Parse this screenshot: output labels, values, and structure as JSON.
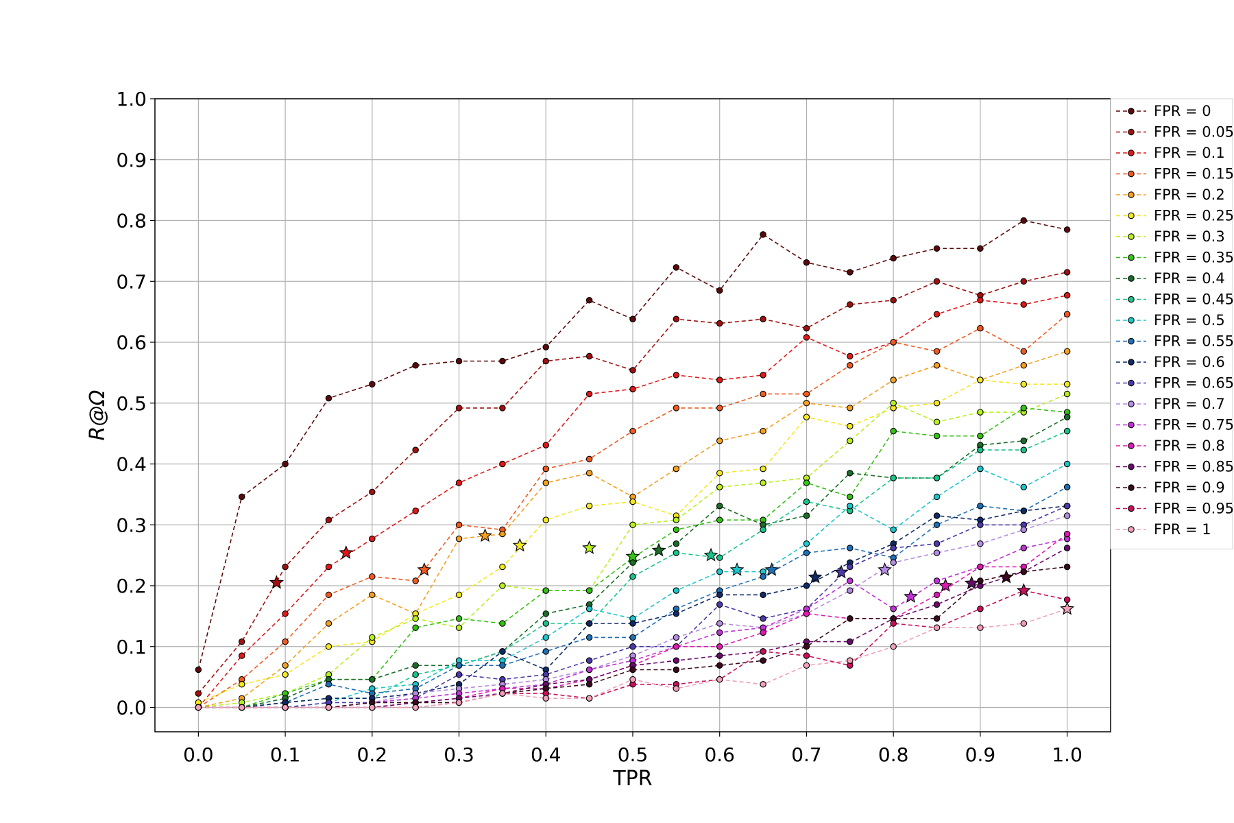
{
  "chart_data": {
    "type": "line",
    "xlabel": "TPR",
    "ylabel": "R@Ω",
    "xlim": [
      -0.05,
      1.05
    ],
    "ylim": [
      -0.04,
      1.0
    ],
    "grid": true,
    "legend_position": "right",
    "x": [
      0,
      0.05,
      0.1,
      0.15,
      0.2,
      0.25,
      0.3,
      0.35,
      0.4,
      0.45,
      0.5,
      0.55,
      0.6,
      0.65,
      0.7,
      0.75,
      0.8,
      0.85,
      0.9,
      0.95,
      1.0
    ],
    "x_ticks": [
      "0.0",
      "0.1",
      "0.2",
      "0.3",
      "0.4",
      "0.5",
      "0.6",
      "0.7",
      "0.8",
      "0.9",
      "1.0"
    ],
    "y_ticks": [
      "0.0",
      "0.1",
      "0.2",
      "0.3",
      "0.4",
      "0.5",
      "0.6",
      "0.7",
      "0.8",
      "0.9",
      "1.0"
    ],
    "series": [
      {
        "name": "FPR = 0",
        "color": "#5a0a0a",
        "values": [
          0.062,
          0.346,
          0.4,
          0.508,
          0.531,
          0.562,
          0.569,
          0.569,
          0.592,
          0.669,
          0.638,
          0.723,
          0.685,
          0.777,
          0.731,
          0.715,
          0.738,
          0.754,
          0.754,
          0.8,
          0.785
        ],
        "star": [
          0.09,
          0.205
        ]
      },
      {
        "name": "FPR = 0.05",
        "color": "#a01010",
        "values": [
          0.023,
          0.108,
          0.231,
          0.308,
          0.354,
          0.423,
          0.492,
          0.492,
          0.569,
          0.577,
          0.554,
          0.638,
          0.631,
          0.638,
          0.623,
          0.662,
          0.669,
          0.7,
          0.677,
          0.7,
          0.715
        ],
        "star": [
          0.09,
          0.205
        ]
      },
      {
        "name": "FPR = 0.1",
        "color": "#e01818",
        "values": [
          0.0,
          0.085,
          0.154,
          0.231,
          0.277,
          0.323,
          0.369,
          0.4,
          0.431,
          0.515,
          0.523,
          0.546,
          0.538,
          0.546,
          0.608,
          0.577,
          0.6,
          0.646,
          0.669,
          0.662,
          0.677
        ],
        "star": [
          0.17,
          0.254
        ]
      },
      {
        "name": "FPR = 0.15",
        "color": "#f05a20",
        "values": [
          0.0,
          0.046,
          0.108,
          0.185,
          0.215,
          0.208,
          0.3,
          0.292,
          0.392,
          0.408,
          0.454,
          0.492,
          0.492,
          0.515,
          0.515,
          0.562,
          0.6,
          0.585,
          0.623,
          0.585,
          0.646
        ],
        "star": [
          0.26,
          0.226
        ]
      },
      {
        "name": "FPR = 0.2",
        "color": "#f5a020",
        "values": [
          0.0,
          0.015,
          0.069,
          0.138,
          0.185,
          0.154,
          0.277,
          0.285,
          0.369,
          0.385,
          0.346,
          0.392,
          0.438,
          0.454,
          0.5,
          0.492,
          0.538,
          0.562,
          0.538,
          0.562,
          0.585
        ],
        "star": [
          0.33,
          0.282
        ]
      },
      {
        "name": "FPR = 0.25",
        "color": "#f5e81e",
        "values": [
          0.008,
          0.038,
          0.054,
          0.1,
          0.108,
          0.154,
          0.185,
          0.231,
          0.308,
          0.331,
          0.338,
          0.315,
          0.385,
          0.392,
          0.477,
          0.462,
          0.492,
          0.5,
          0.538,
          0.531,
          0.531
        ],
        "star": [
          0.37,
          0.266
        ]
      },
      {
        "name": "FPR = 0.3",
        "color": "#b8f020",
        "values": [
          0.0,
          0.008,
          0.023,
          0.054,
          0.115,
          0.146,
          0.131,
          0.2,
          0.192,
          0.192,
          0.3,
          0.308,
          0.362,
          0.369,
          0.377,
          0.438,
          0.5,
          0.469,
          0.485,
          0.485,
          0.515
        ],
        "star": [
          0.45,
          0.262
        ]
      },
      {
        "name": "FPR = 0.35",
        "color": "#34c214",
        "values": [
          0.0,
          0.0,
          0.023,
          0.046,
          0.046,
          0.131,
          0.146,
          0.138,
          0.192,
          0.192,
          0.246,
          0.292,
          0.308,
          0.308,
          0.369,
          0.346,
          0.454,
          0.446,
          0.446,
          0.492,
          0.485
        ],
        "star": [
          0.5,
          0.248
        ]
      },
      {
        "name": "FPR = 0.4",
        "color": "#1a6e28",
        "values": [
          0.0,
          0.0,
          0.015,
          0.046,
          0.046,
          0.069,
          0.069,
          0.092,
          0.154,
          0.169,
          0.238,
          0.269,
          0.331,
          0.3,
          0.315,
          0.385,
          0.377,
          0.377,
          0.431,
          0.438,
          0.477
        ],
        "star": [
          0.53,
          0.258
        ]
      },
      {
        "name": "FPR = 0.45",
        "color": "#19c48a",
        "values": [
          0.0,
          0.0,
          0.008,
          0.015,
          0.015,
          0.054,
          0.069,
          0.092,
          0.138,
          0.138,
          0.215,
          0.254,
          0.246,
          0.292,
          0.338,
          0.323,
          0.377,
          0.377,
          0.423,
          0.423,
          0.454
        ],
        "star": [
          0.59,
          0.25
        ]
      },
      {
        "name": "FPR = 0.5",
        "color": "#1cc6cc",
        "values": [
          0.0,
          0.0,
          0.0,
          0.008,
          0.031,
          0.038,
          0.077,
          0.077,
          0.115,
          0.162,
          0.146,
          0.192,
          0.223,
          0.223,
          0.269,
          0.331,
          0.292,
          0.346,
          0.392,
          0.362,
          0.4
        ],
        "star": [
          0.62,
          0.226
        ]
      },
      {
        "name": "FPR = 0.55",
        "color": "#1f6fb5",
        "values": [
          0.0,
          0.0,
          0.008,
          0.038,
          0.023,
          0.031,
          0.069,
          0.069,
          0.092,
          0.115,
          0.115,
          0.162,
          0.192,
          0.215,
          0.254,
          0.262,
          0.246,
          0.3,
          0.331,
          0.323,
          0.362
        ],
        "star": [
          0.66,
          0.226
        ]
      },
      {
        "name": "FPR = 0.6",
        "color": "#0f2a66",
        "values": [
          0.0,
          0.0,
          0.008,
          0.015,
          0.015,
          0.023,
          0.038,
          0.092,
          0.062,
          0.138,
          0.138,
          0.154,
          0.185,
          0.185,
          0.2,
          0.238,
          0.269,
          0.315,
          0.308,
          0.323,
          0.331
        ],
        "star": [
          0.71,
          0.214
        ]
      },
      {
        "name": "FPR = 0.65",
        "color": "#4a3aaa",
        "values": [
          0.0,
          0.0,
          0.0,
          0.008,
          0.008,
          0.015,
          0.054,
          0.046,
          0.054,
          0.077,
          0.1,
          0.1,
          0.169,
          0.146,
          0.162,
          0.231,
          0.262,
          0.269,
          0.3,
          0.3,
          0.331
        ],
        "star": [
          0.74,
          0.222
        ]
      },
      {
        "name": "FPR = 0.7",
        "color": "#b48ce0",
        "values": [
          0.0,
          0.0,
          0.0,
          0.0,
          0.008,
          0.023,
          0.031,
          0.038,
          0.046,
          0.062,
          0.085,
          0.115,
          0.138,
          0.131,
          0.154,
          0.192,
          0.238,
          0.254,
          0.269,
          0.292,
          0.315
        ],
        "star": [
          0.79,
          0.226
        ]
      },
      {
        "name": "FPR = 0.75",
        "color": "#c032d6",
        "values": [
          0.0,
          0.0,
          0.0,
          0.0,
          0.008,
          0.015,
          0.023,
          0.031,
          0.038,
          0.062,
          0.077,
          0.1,
          0.123,
          0.131,
          0.162,
          0.208,
          0.162,
          0.208,
          0.231,
          0.262,
          0.277
        ],
        "star": [
          0.82,
          0.182
        ]
      },
      {
        "name": "FPR = 0.8",
        "color": "#e01ab0",
        "values": [
          0.0,
          0.0,
          0.0,
          0.0,
          0.0,
          0.008,
          0.015,
          0.031,
          0.031,
          0.046,
          0.069,
          0.1,
          0.1,
          0.123,
          0.154,
          0.146,
          0.146,
          0.185,
          0.231,
          0.231,
          0.285
        ],
        "star": [
          0.86,
          0.2
        ]
      },
      {
        "name": "FPR = 0.85",
        "color": "#6a0a6a",
        "values": [
          0.0,
          0.0,
          0.0,
          0.0,
          0.0,
          0.008,
          0.015,
          0.023,
          0.038,
          0.046,
          0.069,
          0.077,
          0.085,
          0.092,
          0.108,
          0.108,
          0.146,
          0.169,
          0.2,
          0.223,
          0.262
        ],
        "star": [
          0.89,
          0.204
        ]
      },
      {
        "name": "FPR = 0.9",
        "color": "#3a0a1e",
        "values": [
          0.0,
          0.0,
          0.0,
          0.0,
          0.008,
          0.008,
          0.008,
          0.023,
          0.031,
          0.038,
          0.062,
          0.062,
          0.069,
          0.077,
          0.1,
          0.146,
          0.146,
          0.146,
          0.208,
          0.223,
          0.231
        ],
        "star": [
          0.93,
          0.214
        ]
      },
      {
        "name": "FPR = 0.95",
        "color": "#c8105a",
        "values": [
          0.0,
          0.0,
          0.0,
          0.0,
          0.0,
          0.0,
          0.008,
          0.023,
          0.023,
          0.015,
          0.038,
          0.038,
          0.046,
          0.092,
          0.085,
          0.069,
          0.138,
          0.131,
          0.162,
          0.192,
          0.177
        ],
        "star": [
          0.95,
          0.192
        ]
      },
      {
        "name": "FPR = 1",
        "color": "#f0a0b8",
        "values": [
          0.0,
          0.0,
          0.0,
          0.0,
          0.0,
          0.0,
          0.008,
          0.023,
          0.015,
          0.015,
          0.046,
          0.031,
          0.046,
          0.038,
          0.069,
          0.077,
          0.1,
          0.131,
          0.131,
          0.138,
          0.162
        ],
        "star": [
          1.0,
          0.162
        ]
      }
    ]
  }
}
